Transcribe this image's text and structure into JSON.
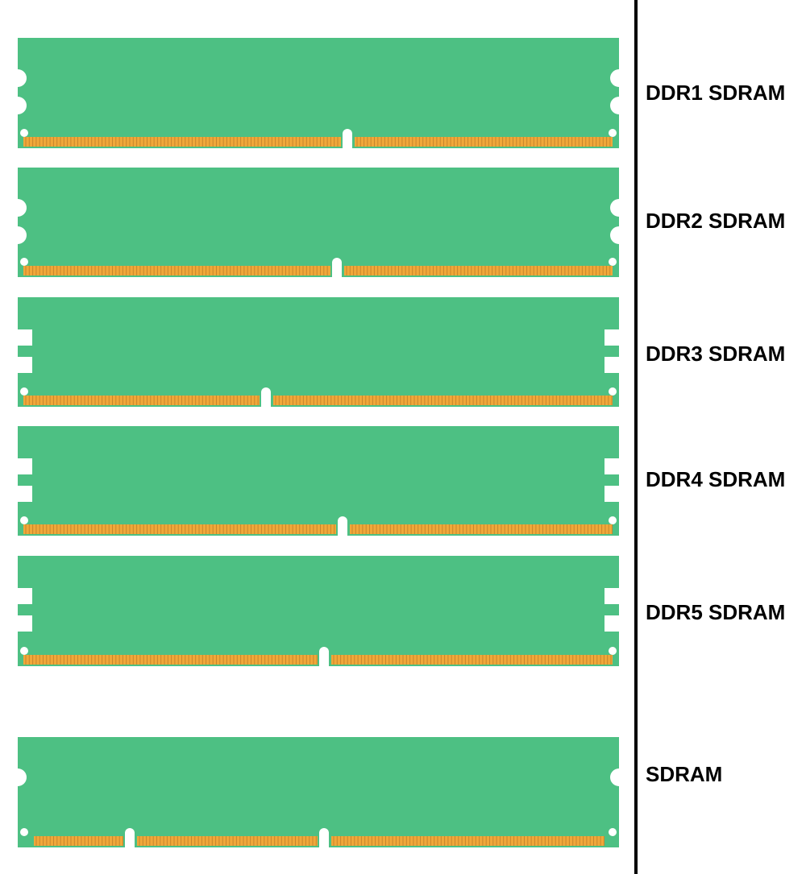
{
  "colors": {
    "pcb": "#4dc083",
    "contacts": "#f0a83a",
    "background": "#ffffff",
    "divider": "#000000",
    "label": "#000000"
  },
  "modules": [
    {
      "id": "ddr1",
      "label": "DDR1 SDRAM",
      "side_notch_shape": "round"
    },
    {
      "id": "ddr2",
      "label": "DDR2 SDRAM",
      "side_notch_shape": "round"
    },
    {
      "id": "ddr3",
      "label": "DDR3 SDRAM",
      "side_notch_shape": "square"
    },
    {
      "id": "ddr4",
      "label": "DDR4 SDRAM",
      "side_notch_shape": "square"
    },
    {
      "id": "ddr5",
      "label": "DDR5 SDRAM",
      "side_notch_shape": "square"
    },
    {
      "id": "sdram",
      "label": "SDRAM",
      "side_notch_shape": "round"
    }
  ]
}
